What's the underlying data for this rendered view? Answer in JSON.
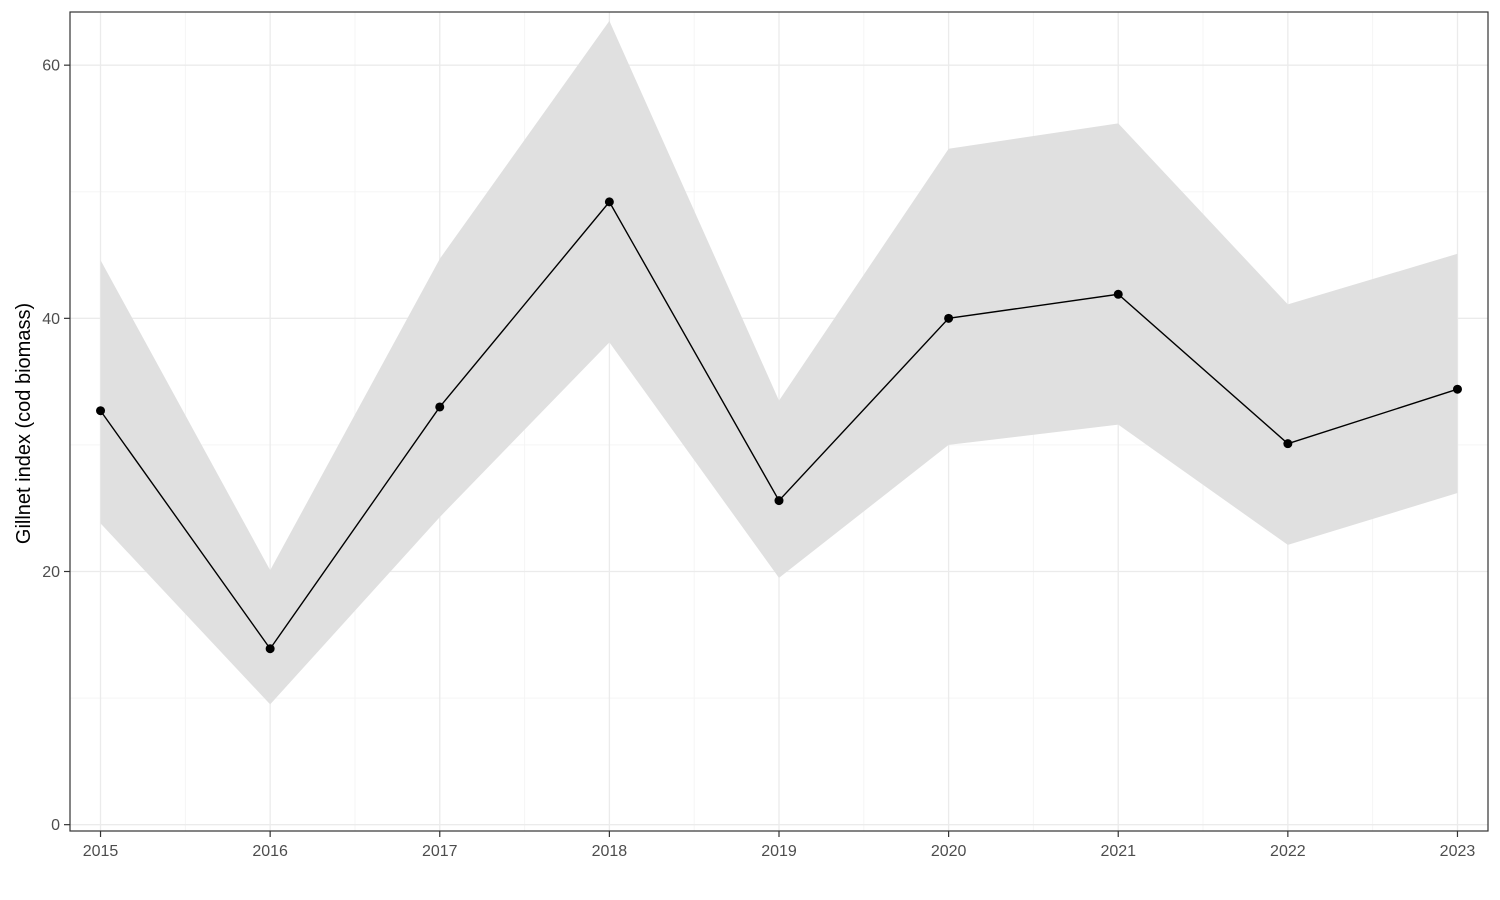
{
  "chart_data": {
    "type": "line",
    "title": "",
    "xlabel": "",
    "ylabel": "Gillnet index (cod biomass)",
    "x": [
      2015,
      2016,
      2017,
      2018,
      2019,
      2020,
      2021,
      2022,
      2023
    ],
    "series": [
      {
        "values": [
          32.7,
          13.9,
          33.0,
          49.2,
          25.6,
          40.0,
          41.9,
          30.1,
          34.4
        ],
        "lower": [
          23.8,
          9.5,
          24.3,
          38.1,
          19.5,
          30.0,
          31.6,
          22.1,
          26.2
        ],
        "upper": [
          44.6,
          20.1,
          44.7,
          63.5,
          33.5,
          53.4,
          55.4,
          41.1,
          45.1
        ]
      }
    ],
    "xticks": [
      "2015",
      "2016",
      "2017",
      "2018",
      "2019",
      "2020",
      "2021",
      "2022",
      "2023"
    ],
    "yticks": [
      "0",
      "20",
      "40",
      "60"
    ],
    "ytick_values": [
      0,
      20,
      40,
      60
    ],
    "xlim": [
      2014.82,
      2023.18
    ],
    "ylim": [
      -0.5,
      64.2
    ],
    "grid": true,
    "legend": "none",
    "colors": {
      "line": "#000000",
      "points": "#000000",
      "ribbon": "#e0e0e0",
      "grid_major": "#ebebeb",
      "grid_minor": "#f5f5f5",
      "panel_border": "#333333"
    }
  }
}
